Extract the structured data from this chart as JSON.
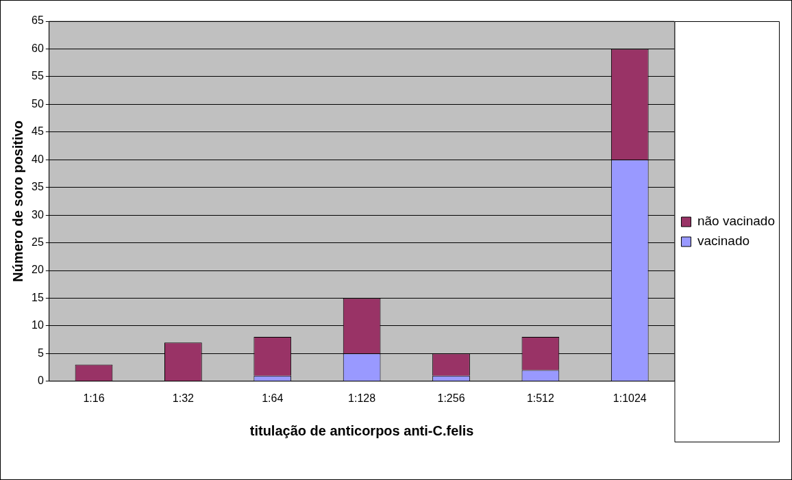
{
  "chart_data": {
    "type": "bar",
    "xlabel": "titulação de anticorpos anti-C.felis",
    "ylabel": "Número de soro positivo",
    "categories": [
      "1:16",
      "1:32",
      "1:64",
      "1:128",
      "1:256",
      "1:512",
      "1:1024"
    ],
    "series": [
      {
        "name": "vacinado",
        "color": "#9999ff",
        "values": [
          0,
          0,
          1,
          5,
          1,
          2,
          40
        ]
      },
      {
        "name": "não vacinado",
        "color": "#993366",
        "values": [
          3,
          7,
          7,
          10,
          4,
          6,
          20
        ]
      }
    ],
    "stacked": true,
    "ylim": [
      0,
      65
    ],
    "yticks": [
      0,
      5,
      10,
      15,
      20,
      25,
      30,
      35,
      40,
      45,
      50,
      55,
      60,
      65
    ],
    "grid": "y",
    "legend": "right"
  }
}
